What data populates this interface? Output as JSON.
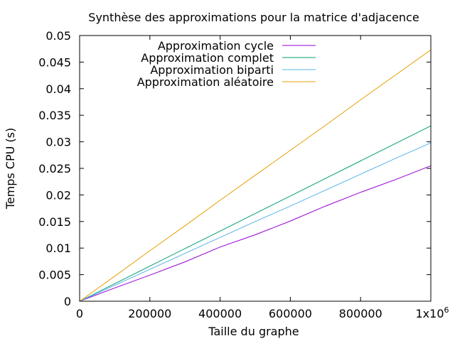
{
  "chart_data": {
    "type": "line",
    "title": "Synthèse des approximations pour la matrice d'adjacence",
    "xlabel": "Taille du graphe",
    "ylabel": "Temps CPU (s)",
    "xlim": [
      0,
      1000000
    ],
    "ylim": [
      0,
      0.05
    ],
    "x_ticks": [
      {
        "value": 0,
        "label": "0"
      },
      {
        "value": 200000,
        "label": "200000"
      },
      {
        "value": 400000,
        "label": "400000"
      },
      {
        "value": 600000,
        "label": "600000"
      },
      {
        "value": 800000,
        "label": "800000"
      }
    ],
    "x_last_tick": {
      "value": 1000000,
      "base": "1x10",
      "exponent": "6"
    },
    "y_ticks": [
      {
        "value": 0,
        "label": "0"
      },
      {
        "value": 0.005,
        "label": "0.005"
      },
      {
        "value": 0.01,
        "label": "0.01"
      },
      {
        "value": 0.015,
        "label": "0.015"
      },
      {
        "value": 0.02,
        "label": "0.02"
      },
      {
        "value": 0.025,
        "label": "0.025"
      },
      {
        "value": 0.03,
        "label": "0.03"
      },
      {
        "value": 0.035,
        "label": "0.035"
      },
      {
        "value": 0.04,
        "label": "0.04"
      },
      {
        "value": 0.045,
        "label": "0.045"
      },
      {
        "value": 0.05,
        "label": "0.05"
      }
    ],
    "legend_position": "top-center",
    "series": [
      {
        "name": "Approximation cycle",
        "color": "#9400d3",
        "x": [
          0,
          100000,
          200000,
          300000,
          400000,
          500000,
          600000,
          700000,
          800000,
          900000,
          1000000
        ],
        "y": [
          0,
          0.0025,
          0.0049,
          0.0074,
          0.0102,
          0.0125,
          0.0151,
          0.0179,
          0.0205,
          0.0229,
          0.0255
        ]
      },
      {
        "name": "Approximation complet",
        "color": "#009e73",
        "x": [
          0,
          100000,
          200000,
          300000,
          400000,
          500000,
          600000,
          700000,
          800000,
          900000,
          1000000
        ],
        "y": [
          0,
          0.0033,
          0.0066,
          0.0099,
          0.0132,
          0.0165,
          0.0198,
          0.0231,
          0.0264,
          0.0297,
          0.033
        ]
      },
      {
        "name": "Approximation biparti",
        "color": "#56b4e9",
        "x": [
          0,
          100000,
          200000,
          300000,
          400000,
          500000,
          600000,
          700000,
          800000,
          900000,
          1000000
        ],
        "y": [
          0,
          0.003,
          0.006,
          0.009,
          0.012,
          0.015,
          0.0179,
          0.0209,
          0.0239,
          0.0269,
          0.0298
        ]
      },
      {
        "name": "Approximation aléatoire",
        "color": "#e69f00",
        "x": [
          0,
          100000,
          200000,
          300000,
          400000,
          500000,
          600000,
          700000,
          800000,
          900000,
          1000000
        ],
        "y": [
          0,
          0.0047,
          0.0095,
          0.0142,
          0.019,
          0.0237,
          0.0284,
          0.0331,
          0.0379,
          0.0426,
          0.0473
        ]
      }
    ]
  }
}
